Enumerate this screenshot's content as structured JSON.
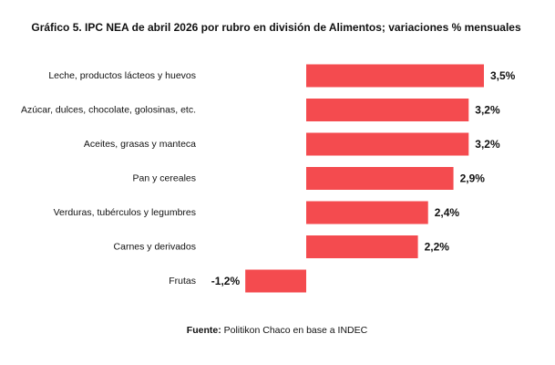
{
  "chart_data": {
    "type": "bar",
    "orientation": "horizontal",
    "title": "Gráfico 5. IPC NEA de abril 2026 por rubro en división de Alimentos; variaciones % mensuales",
    "categories": [
      "Leche, productos lácteos y huevos",
      "Azúcar, dulces, chocolate, golosinas, etc.",
      "Aceites, grasas y manteca",
      "Pan y cereales",
      "Verduras, tubérculos y legumbres",
      "Carnes y derivados",
      "Frutas"
    ],
    "values": [
      3.5,
      3.2,
      3.2,
      2.9,
      2.4,
      2.2,
      -1.2
    ],
    "value_labels": [
      "3,5%",
      "3,2%",
      "3,2%",
      "2,9%",
      "2,4%",
      "2,2%",
      "-1,2%"
    ],
    "color": "#f44b4f",
    "source_label": "Fuente:",
    "source": "Politikon Chaco en base a INDEC"
  }
}
